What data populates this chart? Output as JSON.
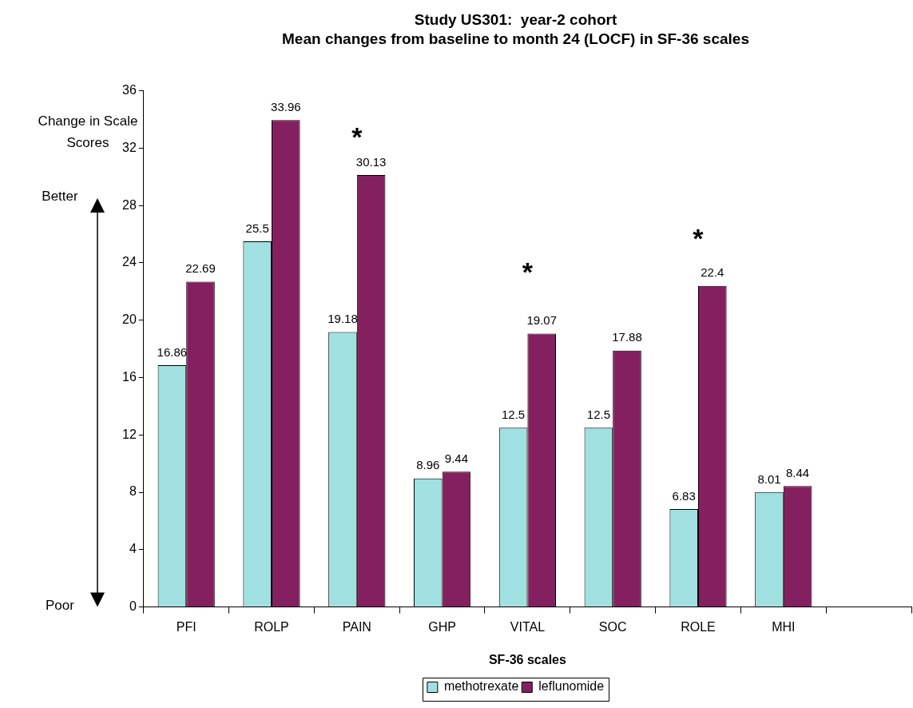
{
  "chart_data": {
    "type": "bar",
    "title": "Study US301:  year-2 cohort",
    "subtitle": "Mean changes from baseline to month 24 (LOCF) in SF-36 scales",
    "xlabel": "SF-36 scales",
    "ylabel": "Change in Scale Scores",
    "categories": [
      "PFI",
      "ROLP",
      "PAIN",
      "GHP",
      "VITAL",
      "SOC",
      "ROLE",
      "MHI",
      null
    ],
    "series": [
      {
        "name": "methotrexate",
        "color": "#a0e0e0",
        "values": [
          16.86,
          25.5,
          19.18,
          8.96,
          12.5,
          12.5,
          6.83,
          8.01,
          null
        ]
      },
      {
        "name": "leflunomide",
        "color": "#842060",
        "values": [
          22.69,
          33.96,
          30.13,
          9.44,
          19.07,
          17.88,
          22.4,
          8.44,
          null
        ]
      }
    ],
    "ylim": [
      0,
      36
    ],
    "yticks": [
      0,
      4,
      8,
      12,
      16,
      20,
      24,
      28,
      32,
      36
    ],
    "grid": false,
    "legend": "bottom",
    "data_labels": true,
    "annotations": [
      "Better",
      "Poor",
      "*",
      "*",
      "*"
    ]
  }
}
